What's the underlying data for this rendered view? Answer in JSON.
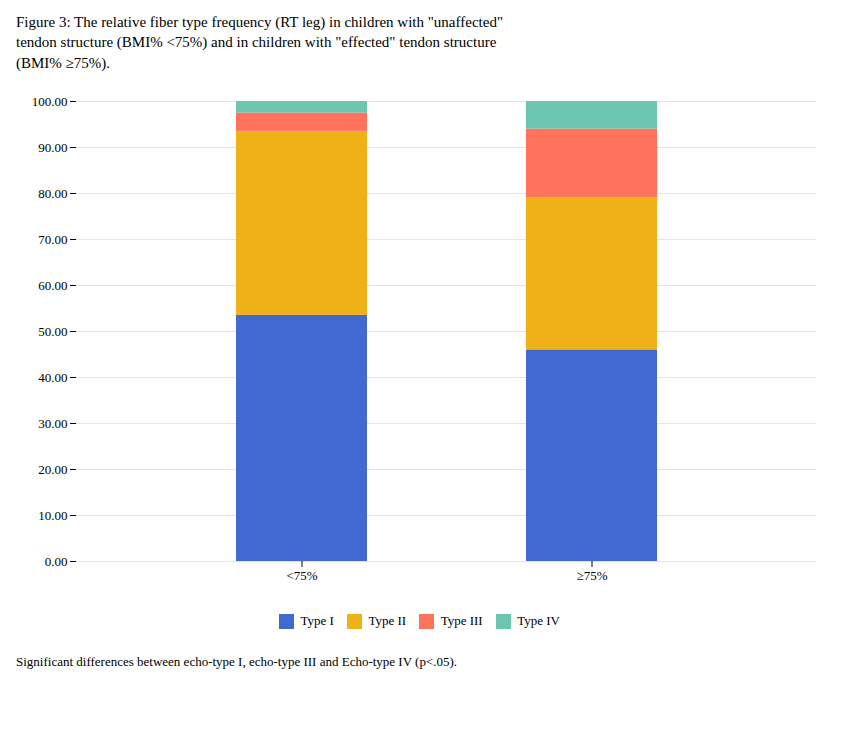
{
  "chart_data": {
    "type": "bar",
    "stacked": true,
    "title": "Figure 3: The relative fiber type frequency (RT leg) in children with \"unaffected\"\ntendon structure (BMI% <75%) and in children with \"effected\" tendon structure\n(BMI% ≥75%).",
    "annotations": [
      "Significant differences between echo-type I, echo-type III and Echo-type IV (p<.05)."
    ],
    "categories": [
      "<75%",
      "≥75%"
    ],
    "series": [
      {
        "name": "Type I",
        "values": [
          53.5,
          46.0
        ]
      },
      {
        "name": "Type II",
        "values": [
          40.0,
          33.0
        ]
      },
      {
        "name": "Type III",
        "values": [
          4.0,
          15.0
        ]
      },
      {
        "name": "Type IV",
        "values": [
          2.5,
          6.0
        ]
      }
    ],
    "ylim": [
      0,
      100
    ],
    "yticks": [
      {
        "value": 0,
        "label": "0.00"
      },
      {
        "value": 10,
        "label": "10.00"
      },
      {
        "value": 20,
        "label": "20.00"
      },
      {
        "value": 30,
        "label": "30.00"
      },
      {
        "value": 40,
        "label": "40.00"
      },
      {
        "value": 50,
        "label": "50.00"
      },
      {
        "value": 60,
        "label": "60.00"
      },
      {
        "value": 70,
        "label": "70.00"
      },
      {
        "value": 80,
        "label": "80.00"
      },
      {
        "value": 90,
        "label": "90.00"
      },
      {
        "value": 100,
        "label": "100.00"
      }
    ],
    "grid": true,
    "legend": "bottom"
  }
}
